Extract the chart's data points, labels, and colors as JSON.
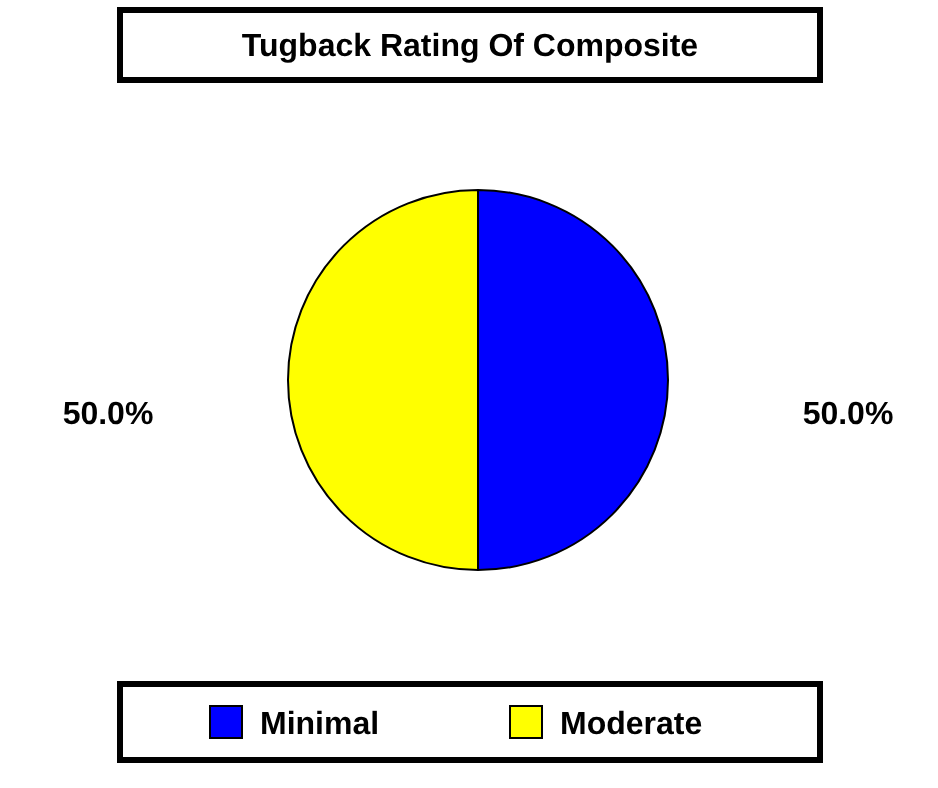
{
  "chart_data": {
    "type": "pie",
    "title": "Tugback Rating Of Composite",
    "categories": [
      "Minimal",
      "Moderate"
    ],
    "values": [
      50,
      50
    ],
    "colors": [
      "#0000ff",
      "#ffff00"
    ],
    "value_labels": [
      "50.0%",
      "50.0%"
    ],
    "legend": "bottom"
  }
}
